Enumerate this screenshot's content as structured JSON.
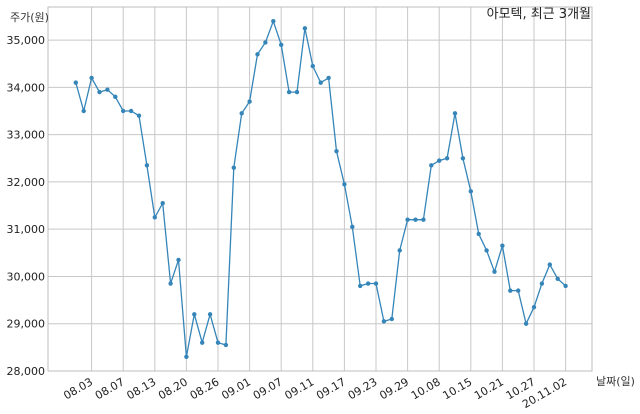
{
  "chart_data": {
    "type": "line",
    "title": "아모텍, 최근 3개월",
    "xlabel": "날짜(일)",
    "ylabel": "주가(원)",
    "ylim": [
      28000,
      35700
    ],
    "yticks": [
      28000,
      29000,
      30000,
      31000,
      32000,
      33000,
      34000,
      35000
    ],
    "ytick_labels": [
      "28,000",
      "29,000",
      "30,000",
      "31,000",
      "32,000",
      "33,000",
      "34,000",
      "35,000"
    ],
    "xtick_labels": [
      "08.03",
      "08.07",
      "08.13",
      "08.20",
      "08.26",
      "09.01",
      "09.07",
      "09.11",
      "09.17",
      "09.23",
      "09.29",
      "10.08",
      "10.15",
      "10.21",
      "10.27",
      "20.11.02"
    ],
    "xtick_positions": [
      2,
      6,
      10,
      14,
      18,
      22,
      26,
      30,
      34,
      38,
      42,
      46,
      50,
      54,
      58,
      62
    ],
    "grid": true,
    "color": "#3585b9",
    "series": [
      {
        "values": [
          34100,
          33500,
          34200,
          33900,
          33950,
          33800,
          33500,
          33500,
          33400,
          32350,
          31250,
          31550,
          29850,
          30350,
          28300,
          29200,
          28600,
          29200,
          28600,
          28550,
          32300,
          33450,
          33700,
          34700,
          34950,
          35400,
          34900,
          33900,
          33900,
          35250,
          34450,
          34100,
          34200,
          32650,
          31950,
          31050,
          29800,
          29850,
          29850,
          29050,
          29100,
          30550,
          31200,
          31200,
          31200,
          32350,
          32450,
          32500,
          33450,
          32500,
          31800,
          30900,
          30550,
          30100,
          30650,
          29700,
          29700,
          29000,
          29350,
          29850,
          30250,
          29950,
          29800
        ]
      }
    ]
  }
}
